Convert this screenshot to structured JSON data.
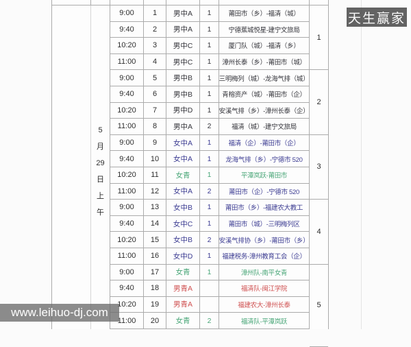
{
  "watermarks": {
    "top_right": "天生赢家",
    "bottom_left": "www.leihuo-dj.com"
  },
  "date_column": [
    "5",
    "月",
    "29",
    "日",
    "上",
    "午"
  ],
  "groups": [
    "1",
    "2",
    "3",
    "4",
    "5"
  ],
  "colors": {
    "dark_text": "#35353b",
    "indigo_text": "#3c3c92",
    "green_text": "#49a678",
    "red_text": "#d05252",
    "border": "#ababab"
  },
  "rows": [
    {
      "time": "9:00",
      "no": "1",
      "category": "男中A",
      "court": "1",
      "match": "莆田市（乡）-福清（城）",
      "color": "dark"
    },
    {
      "time": "9:40",
      "no": "2",
      "category": "男中A",
      "court": "1",
      "match": "宁德蕉城悦星-建宁文旅局",
      "color": "dark"
    },
    {
      "time": "10:20",
      "no": "3",
      "category": "男中C",
      "court": "1",
      "match": "厦门队（城）-福清（乡）",
      "color": "dark"
    },
    {
      "time": "11:00",
      "no": "4",
      "category": "男中C",
      "court": "1",
      "match": "漳州长泰（乡）-莆田市（城）",
      "color": "dark"
    },
    {
      "time": "9:00",
      "no": "5",
      "category": "男中B",
      "court": "1",
      "match": "三明梅列（城）-龙海气排（城）",
      "color": "dark"
    },
    {
      "time": "9:40",
      "no": "6",
      "category": "男中B",
      "court": "1",
      "match": "青榕资产（城）-莆田市（企）",
      "color": "dark"
    },
    {
      "time": "10:20",
      "no": "7",
      "category": "男中D",
      "court": "1",
      "match": "安溪气排（乡）-漳州长泰（企）",
      "color": "dark"
    },
    {
      "time": "11:00",
      "no": "8",
      "category": "男中A",
      "court": "2",
      "match": "福清（城）-建宁文旅局",
      "color": "dark"
    },
    {
      "time": "9:00",
      "no": "9",
      "category": "女中A",
      "court": "1",
      "match": "福清（企）-莆田市（企）",
      "color": "indigo"
    },
    {
      "time": "9:40",
      "no": "10",
      "category": "女中A",
      "court": "1",
      "match": "龙海气排（乡）-宁德市 520",
      "color": "indigo"
    },
    {
      "time": "10:20",
      "no": "11",
      "category": "女青",
      "court": "1",
      "match": "平潭岚跃-莆田市",
      "color": "green"
    },
    {
      "time": "11:00",
      "no": "12",
      "category": "女中A",
      "court": "2",
      "match": "莆田市（企）-宁德市 520",
      "color": "indigo"
    },
    {
      "time": "9:00",
      "no": "13",
      "category": "女中B",
      "court": "1",
      "match": "莆田市（乡）-福建农大教工",
      "color": "indigo"
    },
    {
      "time": "9:40",
      "no": "14",
      "category": "女中C",
      "court": "1",
      "match": "莆田市（城）-三明梅列区",
      "color": "indigo"
    },
    {
      "time": "10:20",
      "no": "15",
      "category": "女中B",
      "court": "2",
      "match": "安溪气排协（乡）-莆田市（乡）",
      "color": "indigo"
    },
    {
      "time": "11:00",
      "no": "16",
      "category": "女中D",
      "court": "1",
      "match": "福建税务-漳州教育工会（企）",
      "color": "indigo"
    },
    {
      "time": "9:00",
      "no": "17",
      "category": "女青",
      "court": "1",
      "match": "漳州队-南平女青",
      "color": "green"
    },
    {
      "time": "9:40",
      "no": "18",
      "category": "男青A",
      "court": "",
      "match": "福清队-闽江学院",
      "color": "red"
    },
    {
      "time": "10:20",
      "no": "19",
      "category": "男青A",
      "court": "",
      "match": "福建农大-漳州长泰",
      "color": "red"
    },
    {
      "time": "11:00",
      "no": "20",
      "category": "女青",
      "court": "2",
      "match": "福清队-平潭岚跃",
      "color": "green"
    }
  ]
}
